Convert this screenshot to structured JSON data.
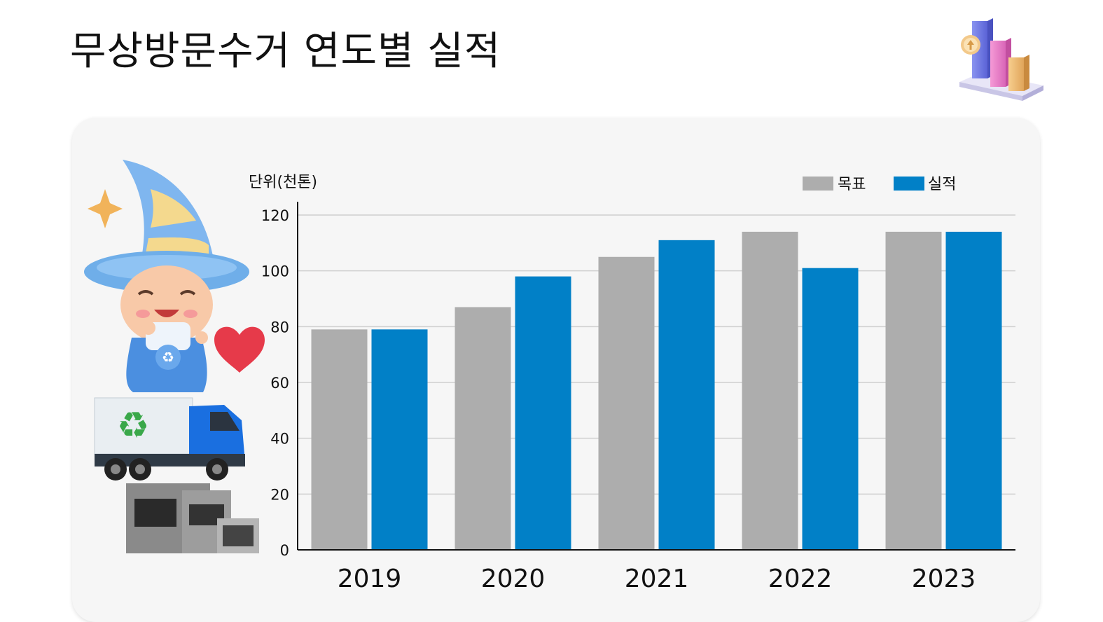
{
  "title": "무상방문수거 연도별 실적",
  "icons": {
    "corner": "bar-chart-3d-icon",
    "mascot": "wizard-mascot-illustration",
    "truck": "recycling-truck-illustration",
    "appliances": "kitchen-appliances-illustration",
    "heart": "heart-icon",
    "sparkle": "sparkle-icon"
  },
  "colors": {
    "target": "#adadad",
    "actual": "#0180c7",
    "panel": "#f6f6f6",
    "grid": "#cfcfcf"
  },
  "chart_data": {
    "type": "bar",
    "unit_label": "단위(천톤)",
    "categories": [
      "2019",
      "2020",
      "2021",
      "2022",
      "2023"
    ],
    "series": [
      {
        "name": "목표",
        "values": [
          79,
          87,
          105,
          114,
          114
        ]
      },
      {
        "name": "실적",
        "values": [
          79,
          98,
          111,
          101,
          114
        ]
      }
    ],
    "ylim": [
      0,
      120
    ],
    "yticks": [
      0,
      20,
      40,
      60,
      80,
      100,
      120
    ],
    "grid": true,
    "legend_position": "top-right"
  }
}
